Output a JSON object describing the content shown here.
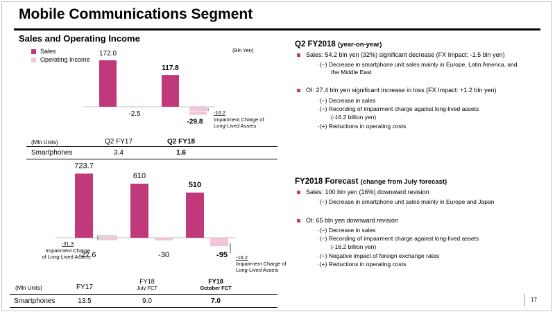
{
  "title": "Mobile Communications Segment",
  "subtitle": "Sales and Operating Income",
  "legend": {
    "sales": "Sales",
    "operating_income": "Operating Income"
  },
  "colors": {
    "sales": "#c0397a",
    "operating_income": "#f1c6d8",
    "accent": "#c0397a",
    "text": "#000000"
  },
  "unit_label": "(Bln Yen)",
  "top_table": {
    "unit": "(Mln Units)",
    "col1": "Q2 FY17",
    "col2": "Q2 FY18",
    "row_label": "Smartphones",
    "v1": "3.4",
    "v2": "1.6"
  },
  "bottom_table": {
    "unit": "(Mln Units)",
    "col1": "FY17",
    "col2_line1": "FY18",
    "col2_line2": "July FCT",
    "col3_line1": "FY18",
    "col3_line2": "October FCT",
    "row_label": "Smartphones",
    "v1": "13.5",
    "v2": "9.0",
    "v3": "7.0"
  },
  "annotations": {
    "top_impairment_value": "-16.2",
    "top_impairment_line1": "Impairment Charge of",
    "top_impairment_line2": "Long-Lived Assets",
    "bottom_left_value": "-31.3",
    "bottom_left_line1": "Impairment Charge",
    "bottom_left_line2": "of Long-Lived Assets",
    "bottom_right_value": "-16.2",
    "bottom_right_line1": "Impairment Charge of",
    "bottom_right_line2": "Long-Lived Assets"
  },
  "chart_data": [
    {
      "type": "bar",
      "categories": [
        "Q2 FY17",
        "Q2 FY18"
      ],
      "series": [
        {
          "name": "Sales",
          "values": [
            172.0,
            117.8
          ]
        },
        {
          "name": "Operating Income",
          "values": [
            -2.5,
            -29.8
          ]
        }
      ],
      "value_labels": {
        "Sales": [
          "172.0",
          "117.8"
        ],
        "Operating Income": [
          "-2.5",
          "-29.8"
        ]
      },
      "impairment_component": [
        null,
        -16.2
      ],
      "ylabel": "(Bln Yen)"
    },
    {
      "type": "bar",
      "categories": [
        "FY17",
        "FY18 July FCT",
        "FY18 October FCT"
      ],
      "series": [
        {
          "name": "Sales",
          "values": [
            723.7,
            610,
            510
          ]
        },
        {
          "name": "Operating Income",
          "values": [
            -27.6,
            -30,
            -95
          ]
        }
      ],
      "value_labels": {
        "Sales": [
          "723.7",
          "610",
          "510"
        ],
        "Operating Income": [
          "-27.6",
          "-30",
          "-95"
        ]
      },
      "impairment_component": [
        -31.3,
        null,
        -16.2
      ]
    }
  ],
  "q2": {
    "title": "Q2 FY2018",
    "title_note": "(year-on-year)",
    "sales_text": "Sales: 54.2 bln yen (32%) significant decrease (FX Impact: -1.5 bln yen)",
    "sales_sub1": "·(−) Decrease in smartphone unit sales mainly in Europe, Latin America, and",
    "sales_sub2": "the Middle East",
    "oi_text": "OI: 27.4 bln yen significant increase in loss (FX Impact: +1.2 bln yen)",
    "oi_sub1": "·(−) Decrease in sales",
    "oi_sub2": "·(−) Recording of impairment charge against long-lived assets",
    "oi_sub3": "(-16.2 billion yen)",
    "oi_sub4": "·(+) Reductions in operating costs"
  },
  "fy": {
    "title": "FY2018 Forecast",
    "title_note": "(change from July forecast)",
    "sales_text": "Sales: 100 bln yen (16%) downward revision",
    "sales_sub1": "·(−) Decrease in smartphone unit sales mainly in Europe and Japan",
    "oi_text": "OI: 65 bln yen downward revision",
    "oi_sub1": "·(−) Decrease in sales",
    "oi_sub2": "·(−) Recording of impairment charge against long-lived assets",
    "oi_sub3": "(-16.2 billion yen)",
    "oi_sub4": "·(−) Negative impact of foreign exchange rates",
    "oi_sub5": "·(+) Reductions in operating costs"
  },
  "page_number": "17"
}
